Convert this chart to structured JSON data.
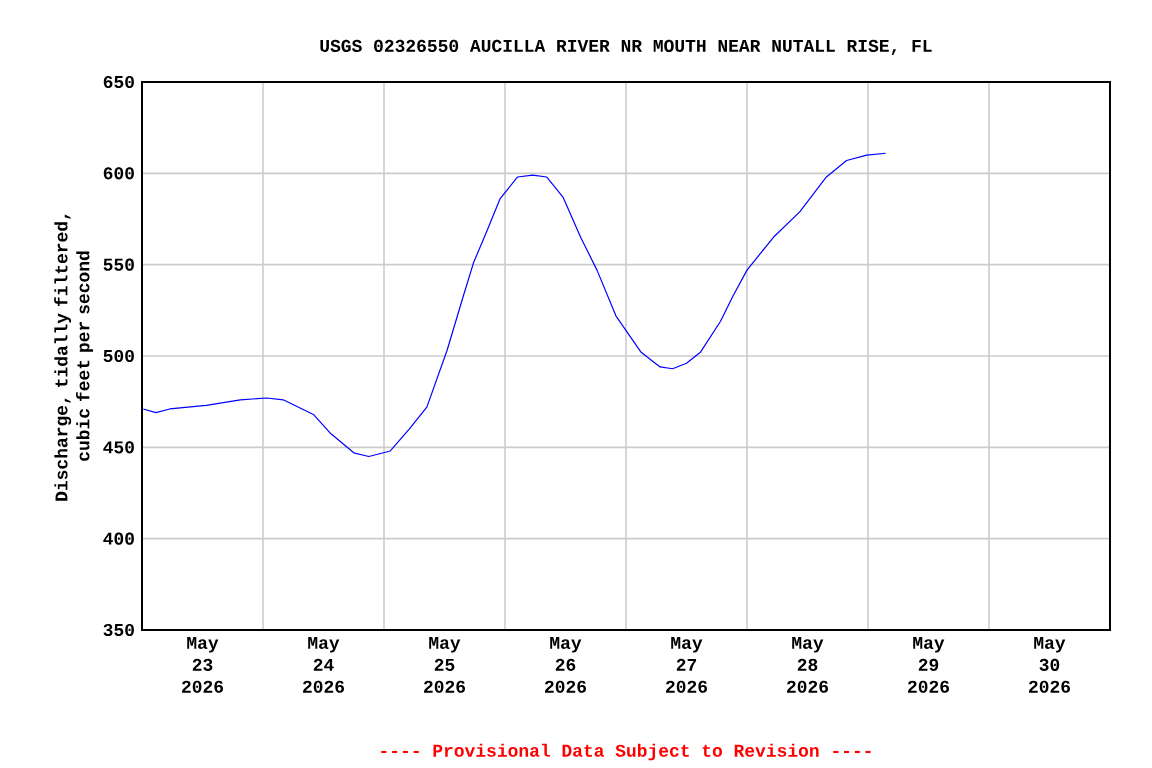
{
  "chart_data": {
    "type": "line",
    "title": "USGS 02326550 AUCILLA RIVER NR MOUTH NEAR NUTALL RISE, FL",
    "ylabel": "Discharge, tidally filtered, cubic feet per second",
    "annotations": [
      "---- Provisional Data Subject to Revision ----"
    ],
    "x": [
      "2026-05-23T00:15",
      "2026-05-23T02:45",
      "2026-05-23T05:30",
      "2026-05-23T12:45",
      "2026-05-23T19:30",
      "2026-05-24T00:45",
      "2026-05-24T04:00",
      "2026-05-24T10:00",
      "2026-05-24T13:15",
      "2026-05-24T18:00",
      "2026-05-24T21:00",
      "2026-05-25T01:15",
      "2026-05-25T05:00",
      "2026-05-25T08:30",
      "2026-05-25T12:30",
      "2026-05-25T15:45",
      "2026-05-25T17:45",
      "2026-05-25T20:30",
      "2026-05-25T23:00",
      "2026-05-26T02:30",
      "2026-05-26T05:30",
      "2026-05-26T08:15",
      "2026-05-26T11:30",
      "2026-05-26T15:00",
      "2026-05-26T18:15",
      "2026-05-26T22:00",
      "2026-05-27T03:00",
      "2026-05-27T06:45",
      "2026-05-27T09:15",
      "2026-05-27T12:00",
      "2026-05-27T14:45",
      "2026-05-27T18:45",
      "2026-05-27T21:15",
      "2026-05-28T00:00",
      "2026-05-28T05:15",
      "2026-05-28T10:30",
      "2026-05-28T15:45",
      "2026-05-28T19:45",
      "2026-05-28T23:45",
      "2026-05-29T03:30"
    ],
    "series": [
      {
        "color": "#0000ff",
        "values": [
          471,
          469,
          471,
          473,
          476,
          477,
          476,
          468,
          458,
          447,
          445,
          448,
          460,
          472,
          503,
          533,
          551,
          569,
          586,
          598,
          599,
          598,
          587,
          565,
          547,
          522,
          502,
          494,
          493,
          496,
          502,
          519,
          533,
          547,
          565,
          579,
          598,
          607,
          610,
          611
        ]
      }
    ],
    "xlim": [
      "2026-05-23T00:00",
      "2026-05-31T00:00"
    ],
    "xticks": [
      {
        "value": "2026-05-23T00:00",
        "label": null
      },
      {
        "value": "2026-05-24T00:00",
        "label": null
      },
      {
        "value": "2026-05-25T00:00",
        "label": null
      },
      {
        "value": "2026-05-26T00:00",
        "label": null
      },
      {
        "value": "2026-05-27T00:00",
        "label": null
      },
      {
        "value": "2026-05-28T00:00",
        "label": null
      },
      {
        "value": "2026-05-29T00:00",
        "label": null
      },
      {
        "value": "2026-05-30T00:00",
        "label": null
      },
      {
        "value": "2026-05-31T00:00",
        "label": null
      },
      {
        "value": "2026-05-23T12:00",
        "label": "May 23 2026"
      },
      {
        "value": "2026-05-24T12:00",
        "label": "May 24 2026"
      },
      {
        "value": "2026-05-25T12:00",
        "label": "May 25 2026"
      },
      {
        "value": "2026-05-26T12:00",
        "label": "May 26 2026"
      },
      {
        "value": "2026-05-27T12:00",
        "label": "May 27 2026"
      },
      {
        "value": "2026-05-28T12:00",
        "label": "May 28 2026"
      },
      {
        "value": "2026-05-29T12:00",
        "label": "May 29 2026"
      },
      {
        "value": "2026-05-30T12:00",
        "label": "May 30 2026"
      }
    ],
    "ylim": [
      350,
      650
    ],
    "yticks": [
      350,
      400,
      450,
      500,
      550,
      600,
      650
    ],
    "grid": true,
    "marker": "none",
    "line_style": "solid"
  }
}
